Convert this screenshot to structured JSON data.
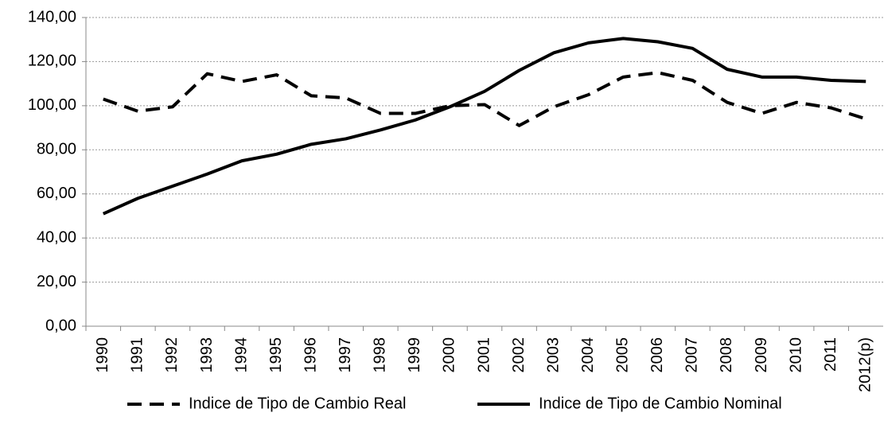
{
  "chart_data": {
    "type": "line",
    "categories": [
      "1990",
      "1991",
      "1992",
      "1993",
      "1994",
      "1995",
      "1996",
      "1997",
      "1998",
      "1999",
      "2000",
      "2001",
      "2002",
      "2003",
      "2004",
      "2005",
      "2006",
      "2007",
      "2008",
      "2009",
      "2010",
      "2011",
      "2012(p)"
    ],
    "series": [
      {
        "name": "Indice de Tipo de Cambio Real",
        "color": "#000000",
        "line_style": "dashed",
        "values": [
          103,
          97.5,
          99.5,
          114.5,
          111,
          114,
          104.5,
          103.5,
          96.5,
          96.5,
          100,
          100.5,
          91,
          99.5,
          105,
          113,
          115,
          111.5,
          101.5,
          96.5,
          101.5,
          99,
          94
        ]
      },
      {
        "name": "Indice de Tipo de Cambio Nominal",
        "color": "#000000",
        "line_style": "solid",
        "values": [
          51,
          58,
          63.5,
          69,
          75,
          78,
          82.5,
          85,
          89,
          93.5,
          99.5,
          106.5,
          116,
          124,
          128.5,
          130.5,
          129,
          126,
          116.5,
          113,
          113,
          111.5,
          111
        ]
      }
    ],
    "ylim": [
      0,
      140
    ],
    "yticks": [
      {
        "value": 0,
        "label": "0,00"
      },
      {
        "value": 20,
        "label": "20,00"
      },
      {
        "value": 40,
        "label": "40,00"
      },
      {
        "value": 60,
        "label": "60,00"
      },
      {
        "value": 80,
        "label": "80,00"
      },
      {
        "value": 100,
        "label": "100,00"
      },
      {
        "value": 120,
        "label": "120,00"
      },
      {
        "value": 140,
        "label": "140,00"
      }
    ],
    "grid": true,
    "legend": "bottom"
  }
}
